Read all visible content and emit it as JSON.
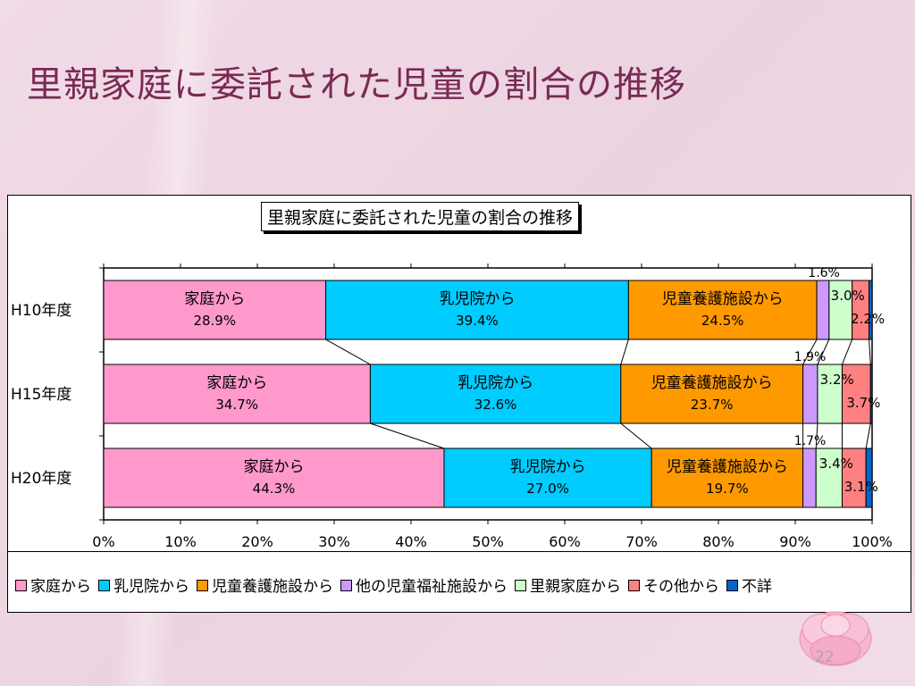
{
  "slide": {
    "title": "里親家庭に委託された児童の割合の推移",
    "page_number": "22"
  },
  "colors": {
    "series": [
      "#ff99cc",
      "#00ccff",
      "#ff9900",
      "#cc99ff",
      "#ccffcc",
      "#ff8080",
      "#0066cc"
    ]
  },
  "chart_data": {
    "type": "bar",
    "orientation": "horizontal",
    "stacked": "percent",
    "title": "里親家庭に委託された児童の割合の推移",
    "categories": [
      "H10年度",
      "H15年度",
      "H20年度"
    ],
    "series": [
      {
        "name": "家庭から",
        "values": [
          28.9,
          34.7,
          44.3
        ]
      },
      {
        "name": "乳児院から",
        "values": [
          39.4,
          32.6,
          27.0
        ]
      },
      {
        "name": "児童養護施設から",
        "values": [
          24.5,
          23.7,
          19.7
        ]
      },
      {
        "name": "他の児童福祉施設から",
        "values": [
          1.6,
          1.9,
          1.7
        ]
      },
      {
        "name": "里親家庭から",
        "values": [
          3.0,
          3.2,
          3.4
        ]
      },
      {
        "name": "その他から",
        "values": [
          2.2,
          3.7,
          3.1
        ]
      },
      {
        "name": "不詳",
        "values": [
          0.4,
          0.2,
          0.8
        ]
      }
    ],
    "data_labels": [
      [
        {
          "series": "家庭から",
          "value": "28.9%"
        },
        {
          "series": "乳児院から",
          "value": "39.4%"
        },
        {
          "series": "児童養護施設から",
          "value": "24.5%"
        },
        {
          "value": "1.6%"
        },
        {
          "value": "3.0%"
        },
        {
          "value": "2.2%"
        }
      ],
      [
        {
          "series": "家庭から",
          "value": "34.7%"
        },
        {
          "series": "乳児院から",
          "value": "32.6%"
        },
        {
          "series": "児童養護施設から",
          "value": "23.7%"
        },
        {
          "value": "1.9%"
        },
        {
          "value": "3.2%"
        },
        {
          "value": "3.7%"
        }
      ],
      [
        {
          "series": "家庭から",
          "value": "44.3%"
        },
        {
          "series": "乳児院から",
          "value": "27.0%"
        },
        {
          "series": "児童養護施設から",
          "value": "19.7%"
        },
        {
          "value": "1.7%"
        },
        {
          "value": "3.4%"
        },
        {
          "value": "3.1%"
        }
      ]
    ],
    "x_ticks": [
      "0%",
      "10%",
      "20%",
      "30%",
      "40%",
      "50%",
      "60%",
      "70%",
      "80%",
      "90%",
      "100%"
    ],
    "xlim": [
      0,
      100
    ],
    "series_lines": true,
    "legend_position": "bottom",
    "legend": [
      "家庭から",
      "乳児院から",
      "児童養護施設から",
      "他の児童福祉施設から",
      "里親家庭から",
      "その他から",
      "不詳"
    ]
  }
}
